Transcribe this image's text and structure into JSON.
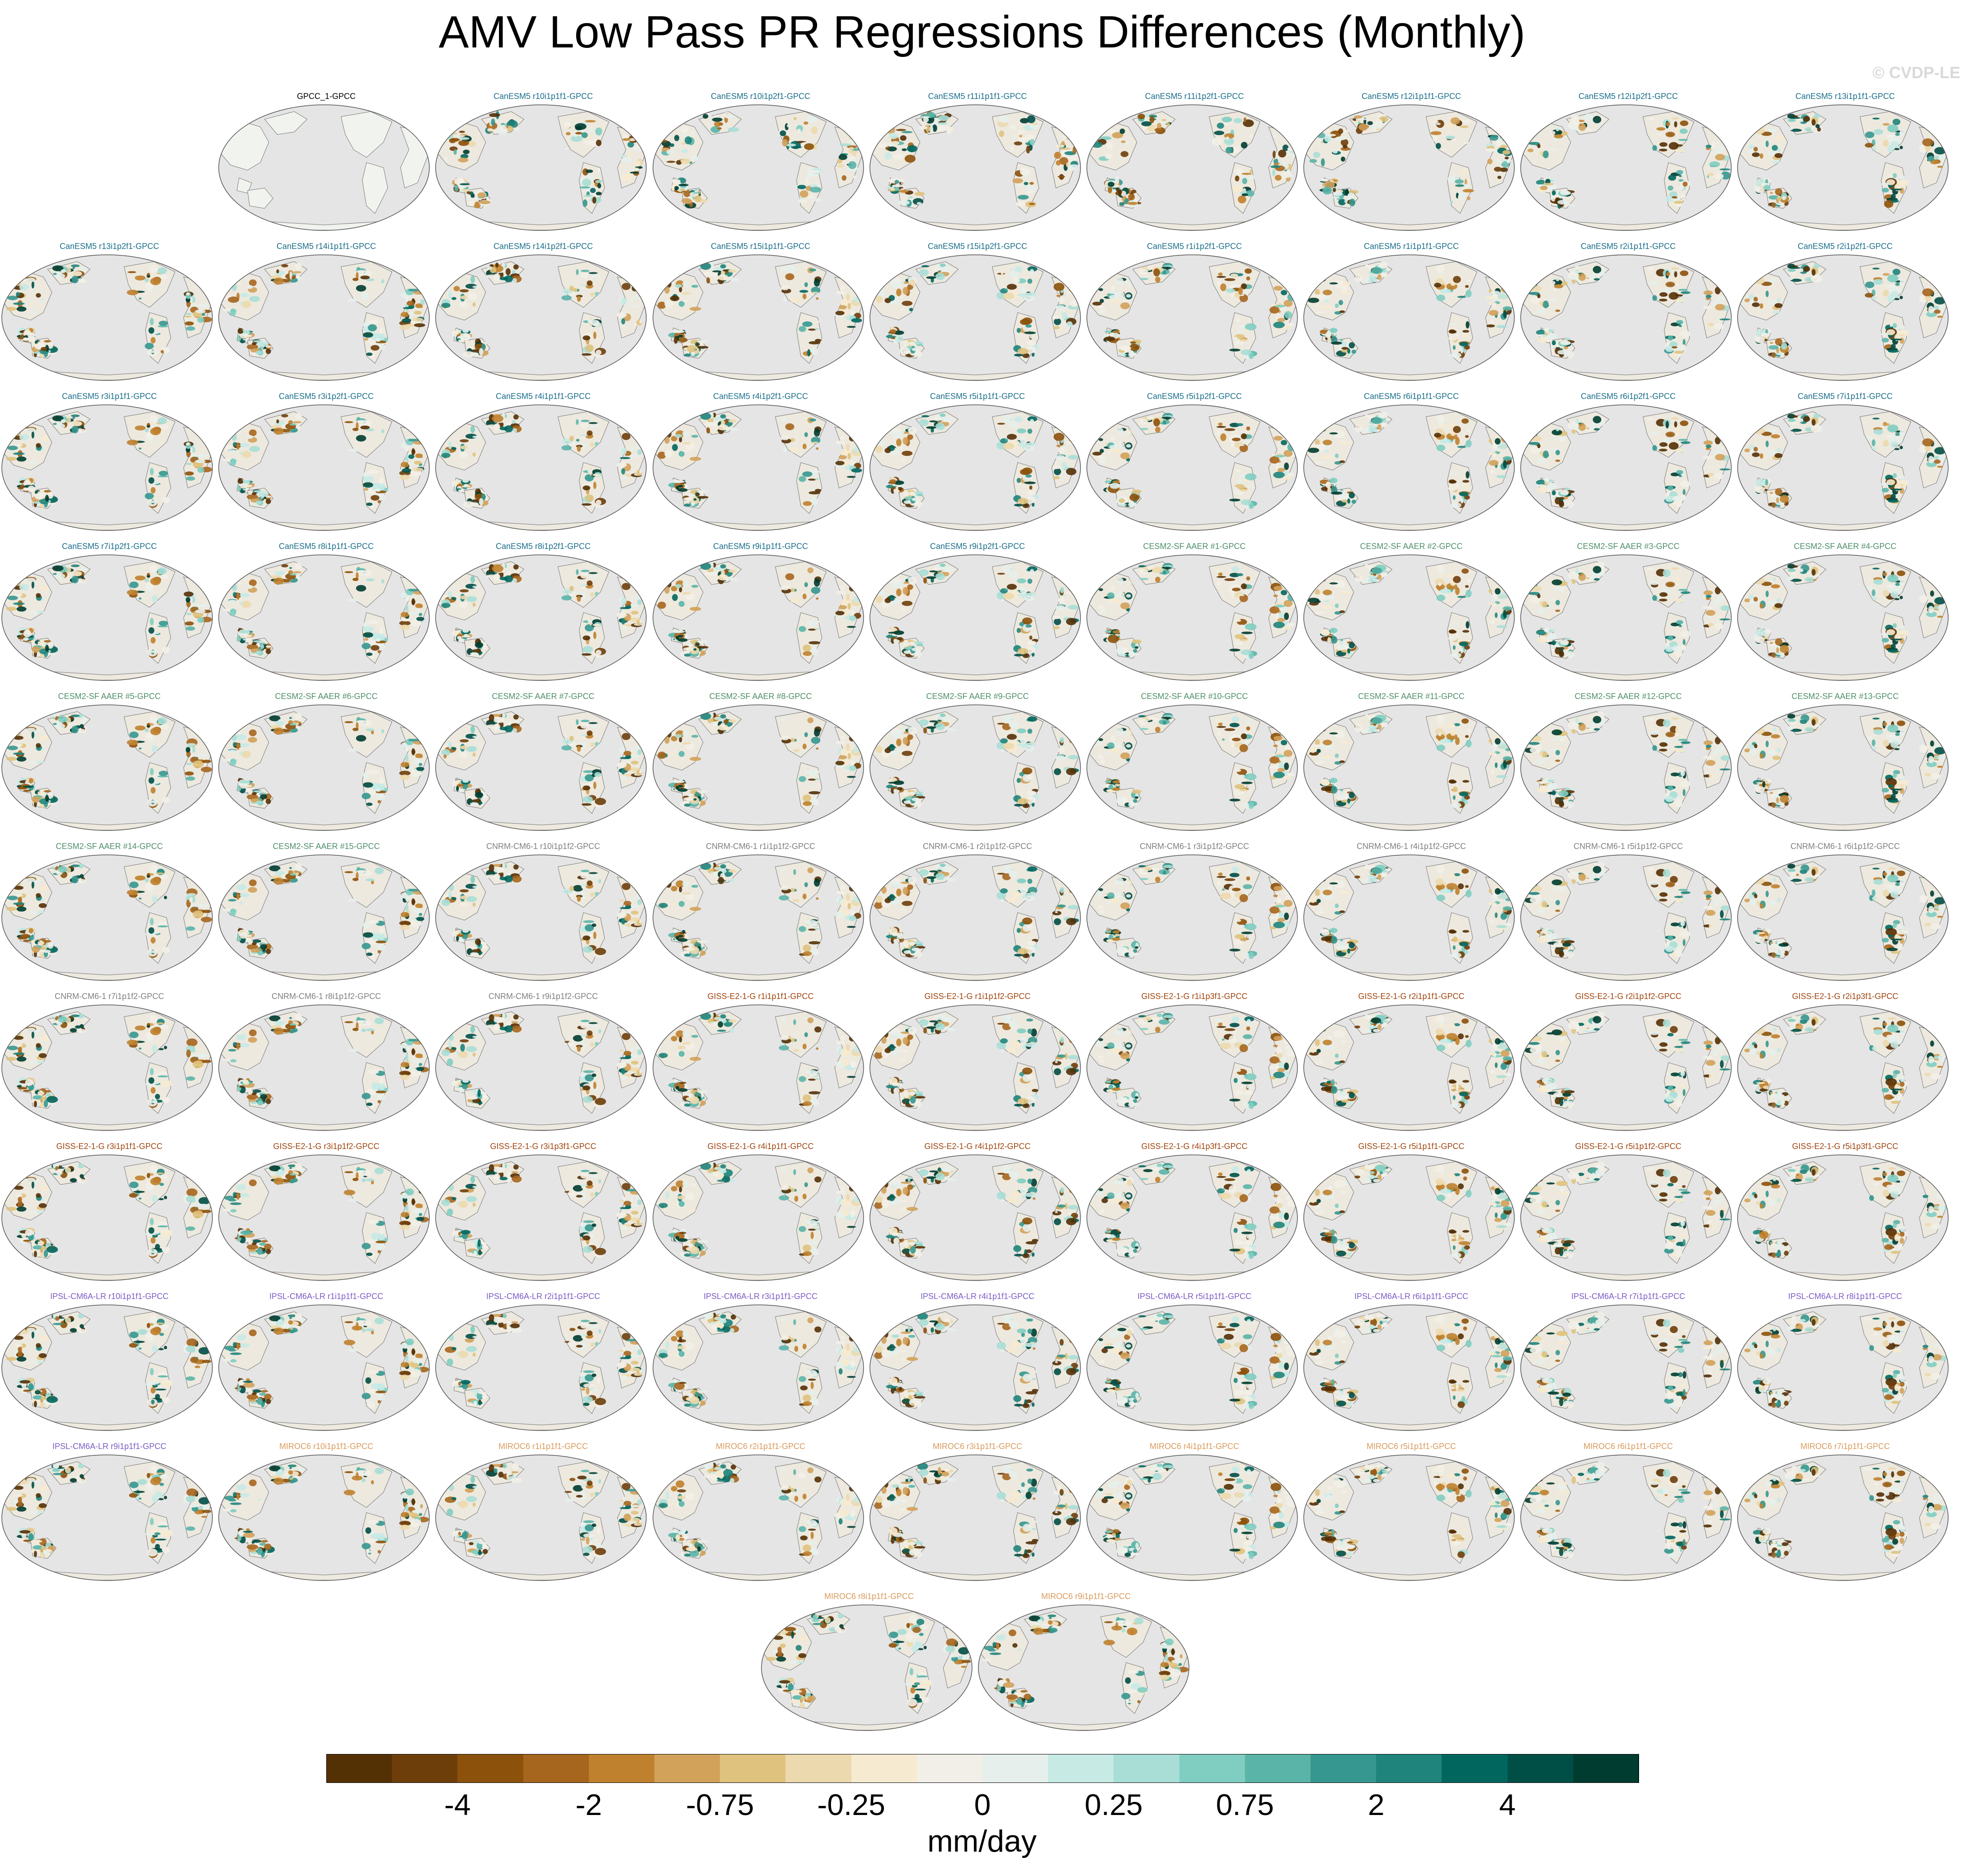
{
  "title": "AMV Low Pass PR Regressions Differences (Monthly)",
  "watermark": "© CVDP-LE",
  "colors": {
    "CanESM5": "#1a6e8a",
    "CESM2": "#4f8f6a",
    "CNRM": "#7f7f7f",
    "GISS": "#a0450f",
    "IPSL": "#7b5cc4",
    "MIROC6": "#d99a5b",
    "obs": "#000000"
  },
  "chart_data": {
    "type": "heatmap",
    "title": "AMV Low Pass PR Regressions Differences (Monthly)",
    "panels": [
      {
        "label": "GPCC_1-GPCC",
        "group": "obs"
      },
      {
        "label": "CanESM5 r10i1p1f1-GPCC",
        "group": "CanESM5"
      },
      {
        "label": "CanESM5 r10i1p2f1-GPCC",
        "group": "CanESM5"
      },
      {
        "label": "CanESM5 r11i1p1f1-GPCC",
        "group": "CanESM5"
      },
      {
        "label": "CanESM5 r11i1p2f1-GPCC",
        "group": "CanESM5"
      },
      {
        "label": "CanESM5 r12i1p1f1-GPCC",
        "group": "CanESM5"
      },
      {
        "label": "CanESM5 r12i1p2f1-GPCC",
        "group": "CanESM5"
      },
      {
        "label": "CanESM5 r13i1p1f1-GPCC",
        "group": "CanESM5"
      },
      {
        "label": "CanESM5 r13i1p2f1-GPCC",
        "group": "CanESM5"
      },
      {
        "label": "CanESM5 r14i1p1f1-GPCC",
        "group": "CanESM5"
      },
      {
        "label": "CanESM5 r14i1p2f1-GPCC",
        "group": "CanESM5"
      },
      {
        "label": "CanESM5 r15i1p1f1-GPCC",
        "group": "CanESM5"
      },
      {
        "label": "CanESM5 r15i1p2f1-GPCC",
        "group": "CanESM5"
      },
      {
        "label": "CanESM5 r1i1p2f1-GPCC",
        "group": "CanESM5"
      },
      {
        "label": "CanESM5 r1i1p1f1-GPCC",
        "group": "CanESM5"
      },
      {
        "label": "CanESM5 r2i1p1f1-GPCC",
        "group": "CanESM5"
      },
      {
        "label": "CanESM5 r2i1p2f1-GPCC",
        "group": "CanESM5"
      },
      {
        "label": "CanESM5 r3i1p1f1-GPCC",
        "group": "CanESM5"
      },
      {
        "label": "CanESM5 r3i1p2f1-GPCC",
        "group": "CanESM5"
      },
      {
        "label": "CanESM5 r4i1p1f1-GPCC",
        "group": "CanESM5"
      },
      {
        "label": "CanESM5 r4i1p2f1-GPCC",
        "group": "CanESM5"
      },
      {
        "label": "CanESM5 r5i1p1f1-GPCC",
        "group": "CanESM5"
      },
      {
        "label": "CanESM5 r5i1p2f1-GPCC",
        "group": "CanESM5"
      },
      {
        "label": "CanESM5 r6i1p1f1-GPCC",
        "group": "CanESM5"
      },
      {
        "label": "CanESM5 r6i1p2f1-GPCC",
        "group": "CanESM5"
      },
      {
        "label": "CanESM5 r7i1p1f1-GPCC",
        "group": "CanESM5"
      },
      {
        "label": "CanESM5 r7i1p2f1-GPCC",
        "group": "CanESM5"
      },
      {
        "label": "CanESM5 r8i1p1f1-GPCC",
        "group": "CanESM5"
      },
      {
        "label": "CanESM5 r8i1p2f1-GPCC",
        "group": "CanESM5"
      },
      {
        "label": "CanESM5 r9i1p1f1-GPCC",
        "group": "CanESM5"
      },
      {
        "label": "CanESM5 r9i1p2f1-GPCC",
        "group": "CanESM5"
      },
      {
        "label": "CESM2-SF AAER #1-GPCC",
        "group": "CESM2"
      },
      {
        "label": "CESM2-SF AAER #2-GPCC",
        "group": "CESM2"
      },
      {
        "label": "CESM2-SF AAER #3-GPCC",
        "group": "CESM2"
      },
      {
        "label": "CESM2-SF AAER #4-GPCC",
        "group": "CESM2"
      },
      {
        "label": "CESM2-SF AAER #5-GPCC",
        "group": "CESM2"
      },
      {
        "label": "CESM2-SF AAER #6-GPCC",
        "group": "CESM2"
      },
      {
        "label": "CESM2-SF AAER #7-GPCC",
        "group": "CESM2"
      },
      {
        "label": "CESM2-SF AAER #8-GPCC",
        "group": "CESM2"
      },
      {
        "label": "CESM2-SF AAER #9-GPCC",
        "group": "CESM2"
      },
      {
        "label": "CESM2-SF AAER #10-GPCC",
        "group": "CESM2"
      },
      {
        "label": "CESM2-SF AAER #11-GPCC",
        "group": "CESM2"
      },
      {
        "label": "CESM2-SF AAER #12-GPCC",
        "group": "CESM2"
      },
      {
        "label": "CESM2-SF AAER #13-GPCC",
        "group": "CESM2"
      },
      {
        "label": "CESM2-SF AAER #14-GPCC",
        "group": "CESM2"
      },
      {
        "label": "CESM2-SF AAER #15-GPCC",
        "group": "CESM2"
      },
      {
        "label": "CNRM-CM6-1 r10i1p1f2-GPCC",
        "group": "CNRM"
      },
      {
        "label": "CNRM-CM6-1 r1i1p1f2-GPCC",
        "group": "CNRM"
      },
      {
        "label": "CNRM-CM6-1 r2i1p1f2-GPCC",
        "group": "CNRM"
      },
      {
        "label": "CNRM-CM6-1 r3i1p1f2-GPCC",
        "group": "CNRM"
      },
      {
        "label": "CNRM-CM6-1 r4i1p1f2-GPCC",
        "group": "CNRM"
      },
      {
        "label": "CNRM-CM6-1 r5i1p1f2-GPCC",
        "group": "CNRM"
      },
      {
        "label": "CNRM-CM6-1 r6i1p1f2-GPCC",
        "group": "CNRM"
      },
      {
        "label": "CNRM-CM6-1 r7i1p1f2-GPCC",
        "group": "CNRM"
      },
      {
        "label": "CNRM-CM6-1 r8i1p1f2-GPCC",
        "group": "CNRM"
      },
      {
        "label": "CNRM-CM6-1 r9i1p1f2-GPCC",
        "group": "CNRM"
      },
      {
        "label": "GISS-E2-1-G r1i1p1f1-GPCC",
        "group": "GISS"
      },
      {
        "label": "GISS-E2-1-G r1i1p1f2-GPCC",
        "group": "GISS"
      },
      {
        "label": "GISS-E2-1-G r1i1p3f1-GPCC",
        "group": "GISS"
      },
      {
        "label": "GISS-E2-1-G r2i1p1f1-GPCC",
        "group": "GISS"
      },
      {
        "label": "GISS-E2-1-G r2i1p1f2-GPCC",
        "group": "GISS"
      },
      {
        "label": "GISS-E2-1-G r2i1p3f1-GPCC",
        "group": "GISS"
      },
      {
        "label": "GISS-E2-1-G r3i1p1f1-GPCC",
        "group": "GISS"
      },
      {
        "label": "GISS-E2-1-G r3i1p1f2-GPCC",
        "group": "GISS"
      },
      {
        "label": "GISS-E2-1-G r3i1p3f1-GPCC",
        "group": "GISS"
      },
      {
        "label": "GISS-E2-1-G r4i1p1f1-GPCC",
        "group": "GISS"
      },
      {
        "label": "GISS-E2-1-G r4i1p1f2-GPCC",
        "group": "GISS"
      },
      {
        "label": "GISS-E2-1-G r4i1p3f1-GPCC",
        "group": "GISS"
      },
      {
        "label": "GISS-E2-1-G r5i1p1f1-GPCC",
        "group": "GISS"
      },
      {
        "label": "GISS-E2-1-G r5i1p1f2-GPCC",
        "group": "GISS"
      },
      {
        "label": "GISS-E2-1-G r5i1p3f1-GPCC",
        "group": "GISS"
      },
      {
        "label": "IPSL-CM6A-LR r10i1p1f1-GPCC",
        "group": "IPSL"
      },
      {
        "label": "IPSL-CM6A-LR r1i1p1f1-GPCC",
        "group": "IPSL"
      },
      {
        "label": "IPSL-CM6A-LR r2i1p1f1-GPCC",
        "group": "IPSL"
      },
      {
        "label": "IPSL-CM6A-LR r3i1p1f1-GPCC",
        "group": "IPSL"
      },
      {
        "label": "IPSL-CM6A-LR r4i1p1f1-GPCC",
        "group": "IPSL"
      },
      {
        "label": "IPSL-CM6A-LR r5i1p1f1-GPCC",
        "group": "IPSL"
      },
      {
        "label": "IPSL-CM6A-LR r6i1p1f1-GPCC",
        "group": "IPSL"
      },
      {
        "label": "IPSL-CM6A-LR r7i1p1f1-GPCC",
        "group": "IPSL"
      },
      {
        "label": "IPSL-CM6A-LR r8i1p1f1-GPCC",
        "group": "IPSL"
      },
      {
        "label": "IPSL-CM6A-LR r9i1p1f1-GPCC",
        "group": "IPSL"
      },
      {
        "label": "MIROC6 r10i1p1f1-GPCC",
        "group": "MIROC6"
      },
      {
        "label": "MIROC6 r1i1p1f1-GPCC",
        "group": "MIROC6"
      },
      {
        "label": "MIROC6 r2i1p1f1-GPCC",
        "group": "MIROC6"
      },
      {
        "label": "MIROC6 r3i1p1f1-GPCC",
        "group": "MIROC6"
      },
      {
        "label": "MIROC6 r4i1p1f1-GPCC",
        "group": "MIROC6"
      },
      {
        "label": "MIROC6 r5i1p1f1-GPCC",
        "group": "MIROC6"
      },
      {
        "label": "MIROC6 r6i1p1f1-GPCC",
        "group": "MIROC6"
      },
      {
        "label": "MIROC6 r7i1p1f1-GPCC",
        "group": "MIROC6"
      },
      {
        "label": "MIROC6 r8i1p1f1-GPCC",
        "group": "MIROC6"
      },
      {
        "label": "MIROC6 r9i1p1f1-GPCC",
        "group": "MIROC6"
      }
    ],
    "colorbar": {
      "units": "mm/day",
      "tick_labels": [
        "-4",
        "-2",
        "-0.75",
        "-0.25",
        "0",
        "0.25",
        "0.75",
        "2",
        "4"
      ],
      "colors": [
        "#543005",
        "#6e3e0a",
        "#8c510a",
        "#a6661e",
        "#bf812d",
        "#d2a15a",
        "#dfc27d",
        "#ecd9ad",
        "#f6ebd0",
        "#f2efe8",
        "#e6efec",
        "#c7eae5",
        "#a8ded6",
        "#80cdc1",
        "#5ab4a8",
        "#35978f",
        "#1f847b",
        "#01665e",
        "#004f47",
        "#003c30"
      ]
    }
  }
}
